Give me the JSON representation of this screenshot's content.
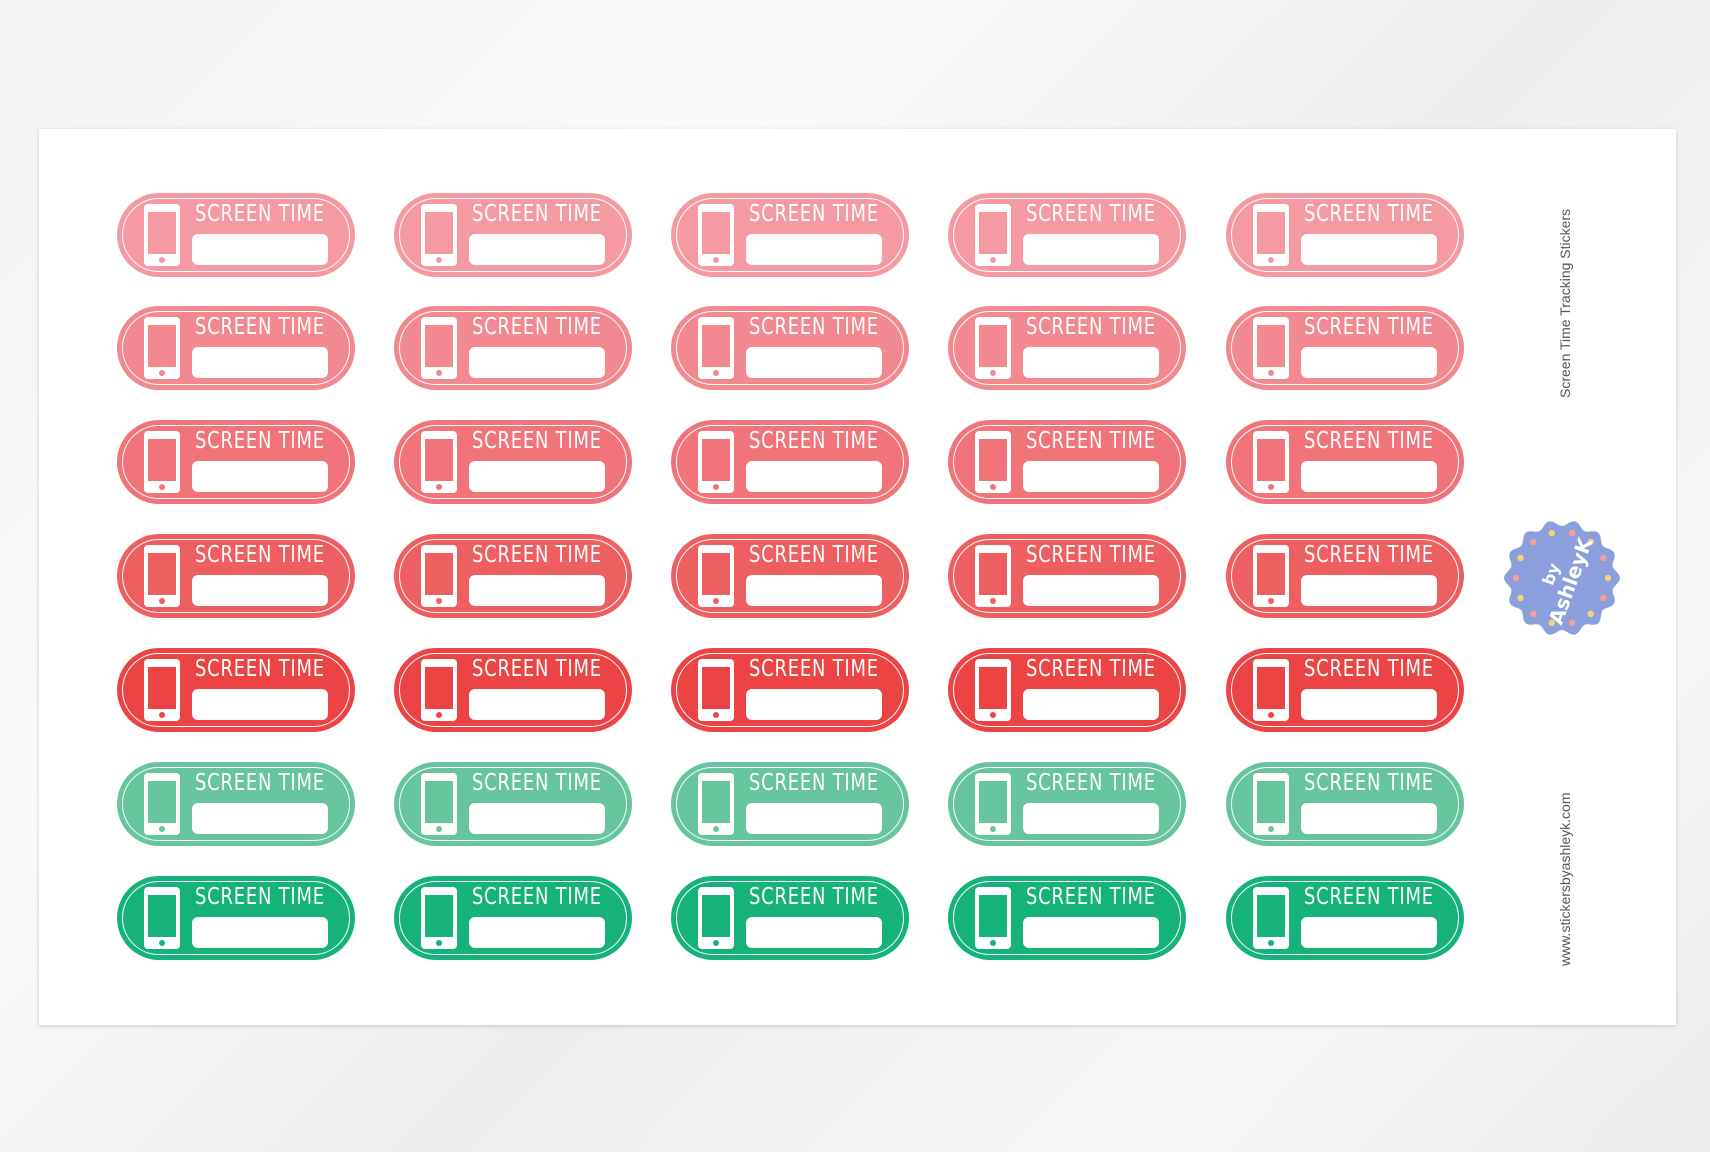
{
  "sticker_label": "SCREEN TIME",
  "rows": [
    {
      "color": "#f59aa3"
    },
    {
      "color": "#f28890"
    },
    {
      "color": "#f07479"
    },
    {
      "color": "#ee5f62"
    },
    {
      "color": "#ec4444"
    },
    {
      "color": "#66c59d"
    },
    {
      "color": "#15b27a"
    }
  ],
  "columns_per_row": 5,
  "side_title": "Screen Time Tracking Stickers",
  "website": "www.stickersbyashleyk.com",
  "logo": {
    "text_line1": "by",
    "text_line2": "AshleyK",
    "color": "#8a9fdc"
  }
}
